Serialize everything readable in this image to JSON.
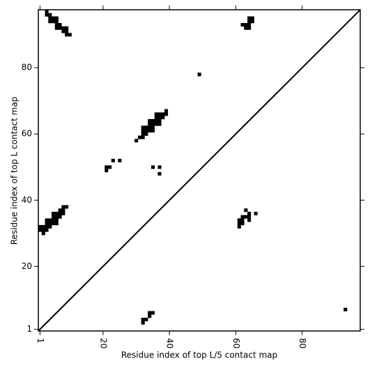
{
  "chart_data": {
    "type": "scatter",
    "xlabel": "Residue index of top L/5 contact map",
    "ylabel": "Residue index of top L contact map",
    "marker": "square",
    "color": "#000000",
    "xlim": [
      0.5,
      97.5
    ],
    "ylim": [
      0.5,
      97.5
    ],
    "xticks": [
      1,
      20,
      40,
      60,
      80
    ],
    "yticks": [
      1,
      20,
      40,
      60,
      80
    ],
    "x": [
      3,
      3,
      4,
      4,
      5,
      6,
      4,
      5,
      6,
      6,
      7,
      6,
      7,
      8,
      9,
      8,
      9,
      9,
      10,
      64,
      65,
      64,
      65,
      62,
      63,
      64,
      63,
      64,
      49,
      39,
      36,
      37,
      38,
      39,
      36,
      37,
      38,
      34,
      35,
      36,
      37,
      34,
      35,
      36,
      37,
      32,
      33,
      34,
      35,
      32,
      33,
      34,
      35,
      32,
      33,
      31,
      32,
      30,
      23,
      25,
      21,
      22,
      21,
      35,
      37,
      37,
      8,
      9,
      7,
      8,
      5,
      6,
      7,
      8,
      5,
      6,
      7,
      3,
      4,
      5,
      6,
      3,
      4,
      5,
      6,
      1,
      2,
      3,
      4,
      1,
      2,
      3,
      2,
      63,
      64,
      66,
      62,
      63,
      64,
      61,
      62,
      64,
      61,
      62,
      61,
      34,
      35,
      34,
      32,
      33,
      32,
      93
    ],
    "y": [
      97,
      96,
      96,
      95,
      95,
      95,
      94,
      94,
      94,
      93,
      93,
      92,
      92,
      92,
      92,
      91,
      91,
      90,
      90,
      95,
      95,
      94,
      94,
      93,
      93,
      93,
      92,
      92,
      78,
      67,
      66,
      66,
      66,
      66,
      65,
      65,
      65,
      64,
      64,
      64,
      64,
      63,
      63,
      63,
      63,
      62,
      62,
      62,
      62,
      61,
      61,
      61,
      61,
      60,
      60,
      59,
      59,
      58,
      52,
      52,
      50,
      50,
      49,
      50,
      50,
      48,
      38,
      38,
      37,
      37,
      36,
      36,
      36,
      36,
      35,
      35,
      35,
      34,
      34,
      34,
      34,
      33,
      33,
      33,
      33,
      32,
      32,
      32,
      32,
      31,
      31,
      31,
      30,
      37,
      36,
      36,
      35,
      35,
      35,
      34,
      34,
      34,
      33,
      33,
      32,
      6,
      6,
      5,
      4,
      4,
      3,
      7
    ]
  }
}
